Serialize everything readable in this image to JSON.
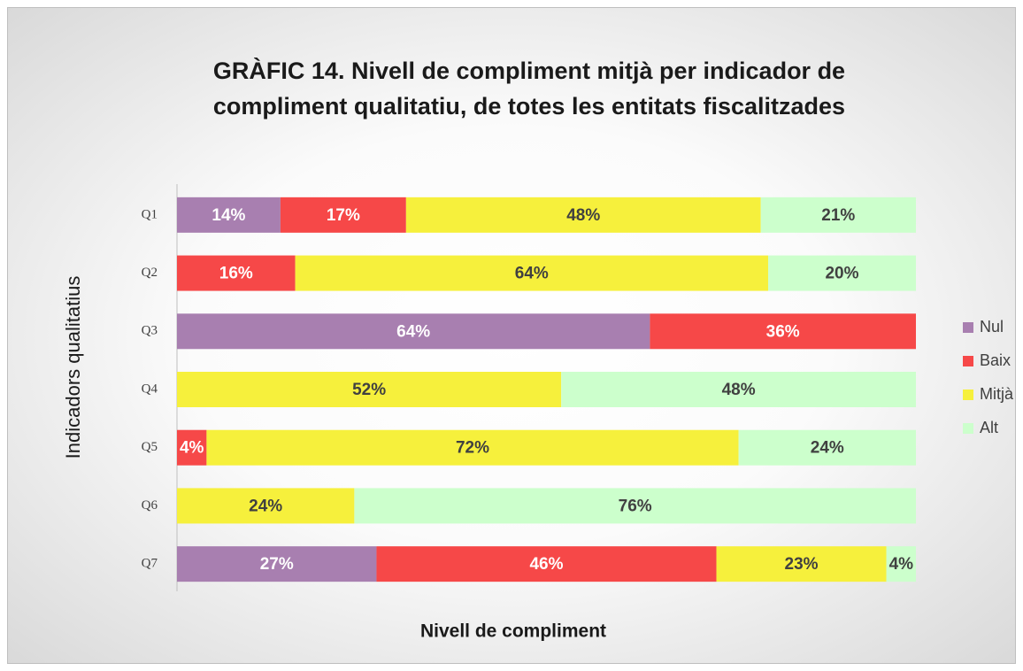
{
  "chart_data": {
    "type": "bar",
    "orientation": "horizontal",
    "stacked": true,
    "title": "GRÀFIC 14. Nivell de compliment mitjà per indicador de compliment qualitatiu, de totes les entitats fiscalitzades",
    "x_label": "Nivell de compliment",
    "y_label": "Indicadors qualitatius",
    "categories": [
      "Q1",
      "Q2",
      "Q3",
      "Q4",
      "Q5",
      "Q6",
      "Q7"
    ],
    "xlim": [
      0,
      100
    ],
    "legend": "right",
    "series": [
      {
        "name": "Nul",
        "color": "#a87fb0",
        "label_color": "#ffffff",
        "values": [
          14,
          null,
          64,
          null,
          null,
          null,
          27
        ],
        "value_labels": [
          "14%",
          null,
          "64%",
          null,
          null,
          null,
          "27%"
        ]
      },
      {
        "name": "Baix",
        "color": "#f64848",
        "label_color": "#ffffff",
        "values": [
          17,
          16,
          36,
          null,
          4,
          null,
          46
        ],
        "value_labels": [
          "17%",
          "16%",
          "36%",
          null,
          "4%",
          null,
          "46%"
        ]
      },
      {
        "name": "Mitjà",
        "color": "#f6f03c",
        "label_color": "#404040",
        "values": [
          48,
          64,
          null,
          52,
          72,
          24,
          23
        ],
        "value_labels": [
          "48%",
          "64%",
          null,
          "52%",
          "72%",
          "24%",
          "23%"
        ]
      },
      {
        "name": "Alt",
        "color": "#ccffcc",
        "label_color": "#404040",
        "values": [
          21,
          20,
          null,
          48,
          24,
          76,
          4
        ],
        "value_labels": [
          "21%",
          "20%",
          null,
          "48%",
          "24%",
          "76%",
          "4%"
        ]
      }
    ]
  }
}
